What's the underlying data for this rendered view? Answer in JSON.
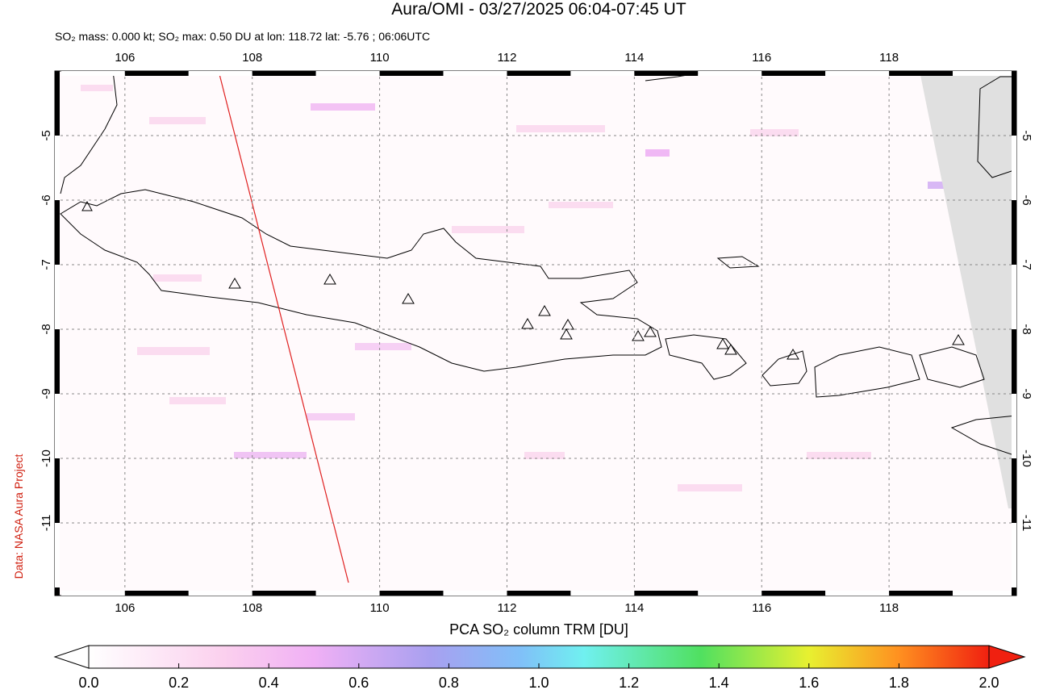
{
  "header": {
    "title": "Aura/OMI - 03/27/2025 06:04-07:45 UT",
    "subtitle": "SO₂ mass: 0.000 kt; SO₂ max: 0.50 DU at lon: 118.72 lat: -5.76 ; 06:06UTC"
  },
  "credit": "Data: NASA Aura Project",
  "map": {
    "xlim": [
      104.9,
      120
    ],
    "ylim": [
      -12.125,
      -4
    ],
    "xticks": [
      106,
      108,
      110,
      112,
      114,
      116,
      118
    ],
    "yticks": [
      -5,
      -6,
      -7,
      -8,
      -9,
      -10,
      -11
    ],
    "grid": true
  },
  "colorbar": {
    "label": "PCA SO₂ column TRM [DU]",
    "range": [
      0,
      2
    ],
    "ticks": [
      {
        "value": 0,
        "label": "0.0"
      },
      0.2,
      0.4,
      0.6,
      0.8,
      {
        "value": 1,
        "label": "1.0"
      },
      1.2,
      1.4,
      1.6,
      1.8,
      {
        "value": 2,
        "label": "2.0"
      }
    ]
  }
}
